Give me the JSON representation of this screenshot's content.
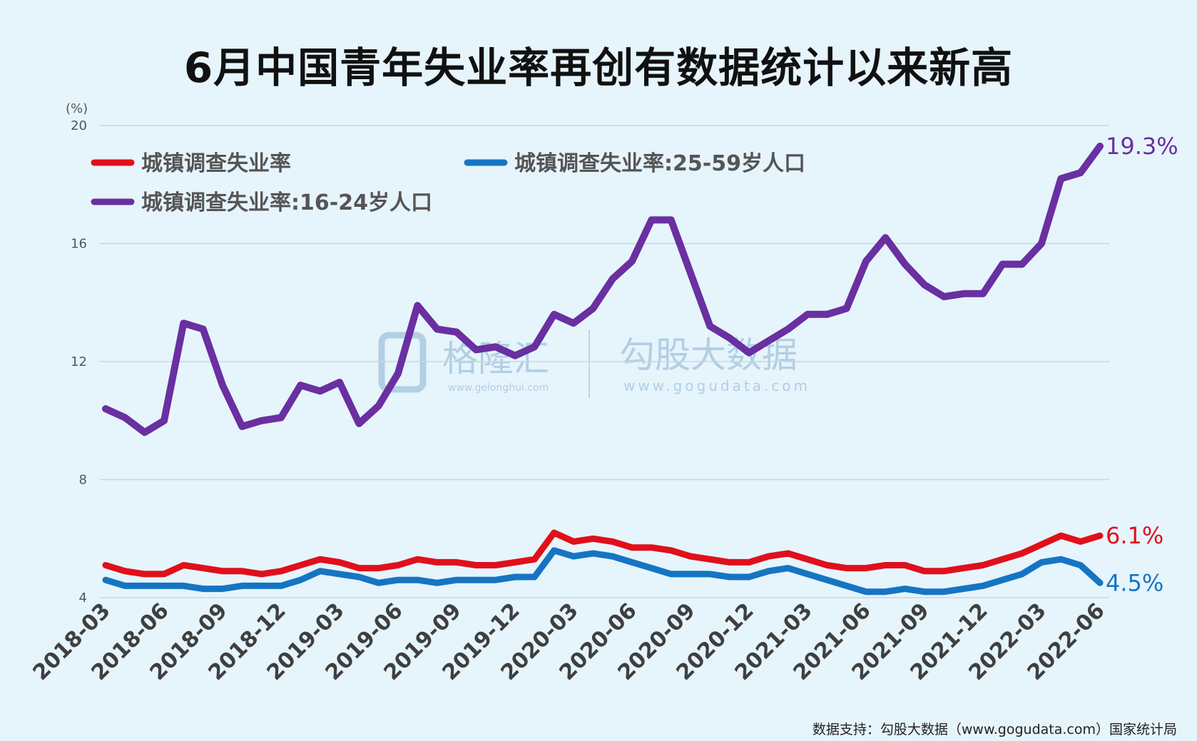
{
  "title": "6月中国青年失业率再创有数据统计以来新高",
  "source": "数据支持：勾股大数据（www.gogudata.com）国家统计局",
  "watermark": {
    "brand1": "格隆汇",
    "brand1_url": "www.gelonghui.com",
    "brand2": "勾股大数据",
    "brand2_url": "www.gogudata.com"
  },
  "chart_data": {
    "type": "line",
    "yunit": "(%)",
    "ylim": [
      4,
      20
    ],
    "yticks": [
      4,
      8,
      12,
      16,
      20
    ],
    "grid": true,
    "legend_position": "top-left",
    "x": [
      "2018-03",
      "2018-04",
      "2018-05",
      "2018-06",
      "2018-07",
      "2018-08",
      "2018-09",
      "2018-10",
      "2018-11",
      "2018-12",
      "2019-01",
      "2019-02",
      "2019-03",
      "2019-04",
      "2019-05",
      "2019-06",
      "2019-07",
      "2019-08",
      "2019-09",
      "2019-10",
      "2019-11",
      "2019-12",
      "2020-01",
      "2020-02",
      "2020-03",
      "2020-04",
      "2020-05",
      "2020-06",
      "2020-07",
      "2020-08",
      "2020-09",
      "2020-10",
      "2020-11",
      "2020-12",
      "2021-01",
      "2021-02",
      "2021-03",
      "2021-04",
      "2021-05",
      "2021-06",
      "2021-07",
      "2021-08",
      "2021-09",
      "2021-10",
      "2021-11",
      "2021-12",
      "2022-01",
      "2022-02",
      "2022-03",
      "2022-04",
      "2022-05",
      "2022-06"
    ],
    "xticks": [
      "2018-03",
      "2018-06",
      "2018-09",
      "2018-12",
      "2019-03",
      "2019-06",
      "2019-09",
      "2019-12",
      "2020-03",
      "2020-06",
      "2020-09",
      "2020-12",
      "2021-03",
      "2021-06",
      "2021-09",
      "2021-12",
      "2022-03",
      "2022-06"
    ],
    "series": [
      {
        "name": "城镇调查失业率",
        "color": "#e0101b",
        "end_label": "6.1%",
        "values": [
          5.1,
          4.9,
          4.8,
          4.8,
          5.1,
          5.0,
          4.9,
          4.9,
          4.8,
          4.9,
          5.1,
          5.3,
          5.2,
          5.0,
          5.0,
          5.1,
          5.3,
          5.2,
          5.2,
          5.1,
          5.1,
          5.2,
          5.3,
          6.2,
          5.9,
          6.0,
          5.9,
          5.7,
          5.7,
          5.6,
          5.4,
          5.3,
          5.2,
          5.2,
          5.4,
          5.5,
          5.3,
          5.1,
          5.0,
          5.0,
          5.1,
          5.1,
          4.9,
          4.9,
          5.0,
          5.1,
          5.3,
          5.5,
          5.8,
          6.1,
          5.9,
          6.1
        ]
      },
      {
        "name": "城镇调查失业率:25-59岁人口",
        "color": "#1575c3",
        "end_label": "4.5%",
        "values": [
          4.6,
          4.4,
          4.4,
          4.4,
          4.4,
          4.3,
          4.3,
          4.4,
          4.4,
          4.4,
          4.6,
          4.9,
          4.8,
          4.7,
          4.5,
          4.6,
          4.6,
          4.5,
          4.6,
          4.6,
          4.6,
          4.7,
          4.7,
          5.6,
          5.4,
          5.5,
          5.4,
          5.2,
          5.0,
          4.8,
          4.8,
          4.8,
          4.7,
          4.7,
          4.9,
          5.0,
          4.8,
          4.6,
          4.4,
          4.2,
          4.2,
          4.3,
          4.2,
          4.2,
          4.3,
          4.4,
          4.6,
          4.8,
          5.2,
          5.3,
          5.1,
          4.5
        ]
      },
      {
        "name": "城镇调查失业率:16-24岁人口",
        "color": "#6a2fa0",
        "end_label": "19.3%",
        "values": [
          10.4,
          10.1,
          9.6,
          10.0,
          13.3,
          13.1,
          11.2,
          9.8,
          10.0,
          10.1,
          11.2,
          11.0,
          11.3,
          9.9,
          10.5,
          11.6,
          13.9,
          13.1,
          13.0,
          12.4,
          12.5,
          12.2,
          12.5,
          13.6,
          13.3,
          13.8,
          14.8,
          15.4,
          16.8,
          16.8,
          15.0,
          13.2,
          12.8,
          12.3,
          12.7,
          13.1,
          13.6,
          13.6,
          13.8,
          15.4,
          16.2,
          15.3,
          14.6,
          14.2,
          14.3,
          14.3,
          15.3,
          15.3,
          16.0,
          18.2,
          18.4,
          19.3
        ]
      }
    ]
  }
}
